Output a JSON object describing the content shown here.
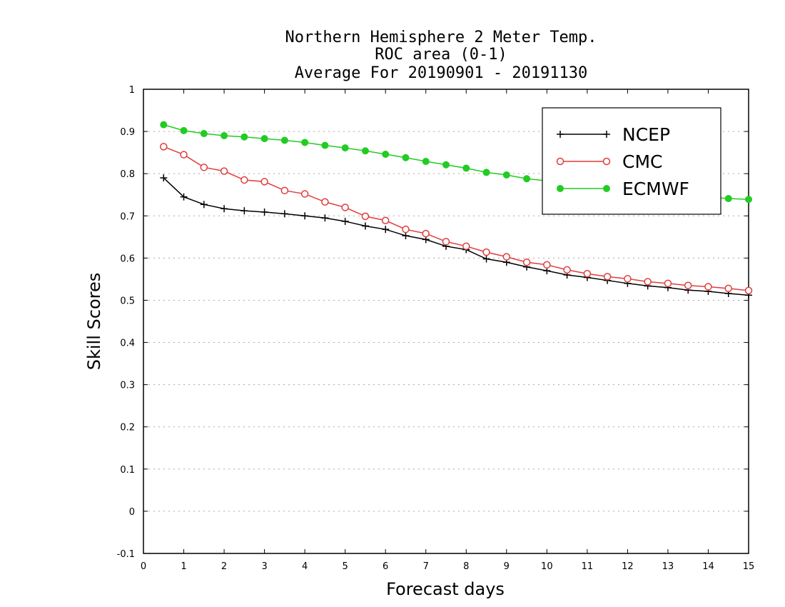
{
  "chart_data": {
    "type": "line",
    "title": [
      "Northern Hemisphere 2 Meter Temp.",
      "ROC area (0-1)",
      "Average For 20190901 - 20191130"
    ],
    "xlabel": "Forecast days",
    "ylabel": "Skill Scores",
    "xlim": [
      0,
      15
    ],
    "ylim": [
      -0.1,
      1
    ],
    "xticks": [
      "0",
      "1",
      "2",
      "3",
      "4",
      "5",
      "6",
      "7",
      "8",
      "9",
      "10",
      "11",
      "12",
      "13",
      "14",
      "15"
    ],
    "yticks": [
      "-0.1",
      "0",
      "0.1",
      "0.2",
      "0.3",
      "0.4",
      "0.5",
      "0.6",
      "0.7",
      "0.8",
      "0.9",
      "1"
    ],
    "grid": "horizontal dotted",
    "legend_position": "top-right",
    "x": [
      0.5,
      1,
      1.5,
      2,
      2.5,
      3,
      3.5,
      4,
      4.5,
      5,
      5.5,
      6,
      6.5,
      7,
      7.5,
      8,
      8.5,
      9,
      9.5,
      10,
      10.5,
      11,
      11.5,
      12,
      12.5,
      13,
      13.5,
      14,
      14.5,
      15
    ],
    "series": [
      {
        "name": "NCEP",
        "color": "#000000",
        "marker": "plus",
        "values": [
          0.79,
          0.745,
          0.727,
          0.717,
          0.712,
          0.709,
          0.705,
          0.7,
          0.695,
          0.687,
          0.676,
          0.668,
          0.653,
          0.644,
          0.628,
          0.62,
          0.598,
          0.59,
          0.579,
          0.57,
          0.56,
          0.554,
          0.547,
          0.54,
          0.534,
          0.53,
          0.524,
          0.521,
          0.516,
          0.512
        ]
      },
      {
        "name": "CMC",
        "color": "#e03c3c",
        "marker": "open-circle",
        "values": [
          0.864,
          0.845,
          0.815,
          0.806,
          0.785,
          0.781,
          0.76,
          0.752,
          0.733,
          0.72,
          0.699,
          0.689,
          0.668,
          0.658,
          0.639,
          0.628,
          0.614,
          0.603,
          0.59,
          0.584,
          0.572,
          0.563,
          0.556,
          0.551,
          0.544,
          0.54,
          0.535,
          0.532,
          0.528,
          0.523
        ]
      },
      {
        "name": "ECMWF",
        "color": "#22cc22",
        "marker": "filled-circle",
        "values": [
          0.916,
          0.902,
          0.895,
          0.89,
          0.887,
          0.883,
          0.879,
          0.874,
          0.867,
          0.861,
          0.854,
          0.846,
          0.838,
          0.829,
          0.821,
          0.813,
          0.803,
          0.797,
          0.788,
          0.783,
          0.777,
          0.771,
          0.766,
          0.762,
          0.757,
          0.752,
          0.748,
          0.745,
          0.741,
          0.739
        ]
      }
    ]
  }
}
